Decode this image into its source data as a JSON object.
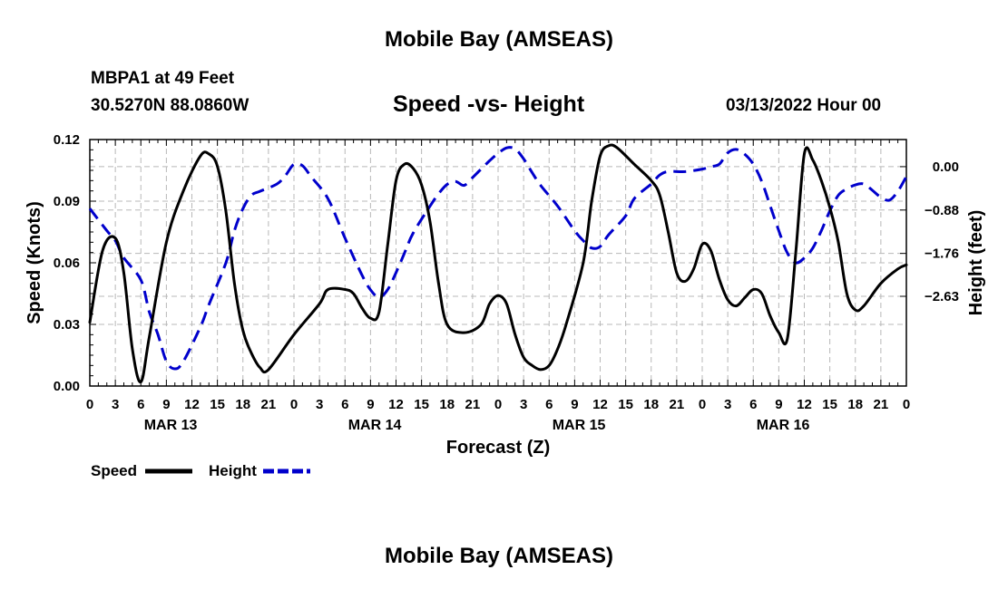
{
  "header": {
    "title": "Mobile Bay (AMSEAS)",
    "station": "MBPA1 at 49 Feet",
    "coords": "30.5270N  88.0860W",
    "subtitle": "Speed -vs- Height",
    "date": "03/13/2022 Hour 00"
  },
  "footer": {
    "title": "Mobile Bay (AMSEAS)"
  },
  "chart_data": {
    "type": "line",
    "xlabel": "Forecast (Z)",
    "ylabel": "Speed (Knots)",
    "y2label": "Height (feet)",
    "x_range_hours": [
      0,
      96
    ],
    "ylim": [
      0,
      0.12
    ],
    "y2lim": [
      -4.45,
      0.55
    ],
    "x_tick_labels": [
      "0",
      "3",
      "6",
      "9",
      "12",
      "15",
      "18",
      "21",
      "0",
      "3",
      "6",
      "9",
      "12",
      "15",
      "18",
      "21",
      "0",
      "3",
      "6",
      "9",
      "12",
      "15",
      "18",
      "21",
      "0",
      "3",
      "6",
      "9",
      "12",
      "15",
      "18",
      "21",
      "0"
    ],
    "day_labels": [
      {
        "label": "MAR 13",
        "hour": 9.5
      },
      {
        "label": "MAR 14",
        "hour": 33.5
      },
      {
        "label": "MAR 15",
        "hour": 57.5
      },
      {
        "label": "MAR 16",
        "hour": 81.5
      }
    ],
    "y_ticks": [
      0,
      0.03,
      0.06,
      0.09,
      0.12
    ],
    "y_tick_labels": [
      "0.00",
      "0.03",
      "0.06",
      "0.09",
      "0.12"
    ],
    "y2_ticks": [
      0.0,
      -0.88,
      -1.76,
      -2.63
    ],
    "y2_tick_labels": [
      "0.00",
      "−0.88",
      "−1.76",
      "−2.63"
    ],
    "legend": [
      {
        "name": "Speed",
        "color": "#000000"
      },
      {
        "name": "Height",
        "color": "#0000cc"
      }
    ],
    "series": [
      {
        "name": "Speed",
        "axis": "left",
        "color": "#000000",
        "dash": "solid",
        "points": [
          [
            0,
            0.031
          ],
          [
            1.5,
            0.066
          ],
          [
            3,
            0.072
          ],
          [
            4,
            0.055
          ],
          [
            5,
            0.018
          ],
          [
            6,
            0.002
          ],
          [
            7,
            0.024
          ],
          [
            9,
            0.07
          ],
          [
            11,
            0.095
          ],
          [
            13,
            0.112
          ],
          [
            14,
            0.113
          ],
          [
            15,
            0.107
          ],
          [
            16,
            0.085
          ],
          [
            17,
            0.05
          ],
          [
            18,
            0.027
          ],
          [
            19,
            0.016
          ],
          [
            20,
            0.009
          ],
          [
            21,
            0.008
          ],
          [
            24,
            0.025
          ],
          [
            27,
            0.04
          ],
          [
            28,
            0.047
          ],
          [
            30,
            0.047
          ],
          [
            31,
            0.045
          ],
          [
            32,
            0.038
          ],
          [
            33,
            0.033
          ],
          [
            34,
            0.036
          ],
          [
            35,
            0.068
          ],
          [
            36,
            0.1
          ],
          [
            37,
            0.108
          ],
          [
            38,
            0.106
          ],
          [
            39,
            0.098
          ],
          [
            40,
            0.08
          ],
          [
            41,
            0.05
          ],
          [
            42,
            0.03
          ],
          [
            44,
            0.026
          ],
          [
            46,
            0.03
          ],
          [
            47,
            0.04
          ],
          [
            48,
            0.044
          ],
          [
            49,
            0.04
          ],
          [
            50,
            0.025
          ],
          [
            51,
            0.014
          ],
          [
            52,
            0.01
          ],
          [
            53,
            0.008
          ],
          [
            54,
            0.01
          ],
          [
            55,
            0.018
          ],
          [
            56,
            0.03
          ],
          [
            58,
            0.06
          ],
          [
            59,
            0.09
          ],
          [
            60,
            0.112
          ],
          [
            61,
            0.117
          ],
          [
            62,
            0.116
          ],
          [
            64,
            0.108
          ],
          [
            66,
            0.1
          ],
          [
            67,
            0.093
          ],
          [
            68,
            0.075
          ],
          [
            69,
            0.055
          ],
          [
            70,
            0.051
          ],
          [
            71,
            0.057
          ],
          [
            72,
            0.069
          ],
          [
            73,
            0.066
          ],
          [
            74,
            0.052
          ],
          [
            75,
            0.042
          ],
          [
            76,
            0.039
          ],
          [
            77,
            0.043
          ],
          [
            78,
            0.047
          ],
          [
            79,
            0.045
          ],
          [
            80,
            0.034
          ],
          [
            81,
            0.026
          ],
          [
            82,
            0.023
          ],
          [
            83,
            0.065
          ],
          [
            84,
            0.113
          ],
          [
            85,
            0.11
          ],
          [
            86,
            0.1
          ],
          [
            87,
            0.087
          ],
          [
            88,
            0.07
          ],
          [
            89,
            0.045
          ],
          [
            90,
            0.037
          ],
          [
            91,
            0.039
          ],
          [
            93,
            0.05
          ],
          [
            95,
            0.057
          ],
          [
            96,
            0.059
          ]
        ]
      },
      {
        "name": "Height",
        "axis": "right",
        "color": "#0000cc",
        "dash": "dashed",
        "points": [
          [
            0,
            -0.85
          ],
          [
            2,
            -1.3
          ],
          [
            3,
            -1.5
          ],
          [
            4,
            -1.85
          ],
          [
            6,
            -2.3
          ],
          [
            7,
            -2.95
          ],
          [
            8,
            -3.4
          ],
          [
            9,
            -3.95
          ],
          [
            10,
            -4.1
          ],
          [
            11,
            -3.95
          ],
          [
            13,
            -3.25
          ],
          [
            14,
            -2.8
          ],
          [
            16,
            -1.95
          ],
          [
            17,
            -1.3
          ],
          [
            18,
            -0.85
          ],
          [
            19,
            -0.58
          ],
          [
            20,
            -0.5
          ],
          [
            22,
            -0.35
          ],
          [
            23,
            -0.18
          ],
          [
            24,
            0.05
          ],
          [
            25,
            0.02
          ],
          [
            26,
            -0.2
          ],
          [
            28,
            -0.65
          ],
          [
            30,
            -1.45
          ],
          [
            32,
            -2.2
          ],
          [
            33,
            -2.5
          ],
          [
            34,
            -2.65
          ],
          [
            35,
            -2.5
          ],
          [
            36,
            -2.15
          ],
          [
            37,
            -1.75
          ],
          [
            38,
            -1.35
          ],
          [
            40,
            -0.8
          ],
          [
            41,
            -0.55
          ],
          [
            42,
            -0.36
          ],
          [
            43,
            -0.3
          ],
          [
            44,
            -0.38
          ],
          [
            45,
            -0.22
          ],
          [
            46,
            -0.05
          ],
          [
            47,
            0.12
          ],
          [
            48,
            0.27
          ],
          [
            49,
            0.38
          ],
          [
            50,
            0.36
          ],
          [
            51,
            0.16
          ],
          [
            52,
            -0.12
          ],
          [
            53,
            -0.38
          ],
          [
            55,
            -0.8
          ],
          [
            57,
            -1.3
          ],
          [
            58,
            -1.5
          ],
          [
            59,
            -1.65
          ],
          [
            60,
            -1.62
          ],
          [
            61,
            -1.38
          ],
          [
            63,
            -1.0
          ],
          [
            64,
            -0.65
          ],
          [
            66,
            -0.35
          ],
          [
            67,
            -0.17
          ],
          [
            68,
            -0.1
          ],
          [
            70,
            -0.1
          ],
          [
            72,
            -0.05
          ],
          [
            73,
            0.0
          ],
          [
            74,
            0.05
          ],
          [
            75,
            0.28
          ],
          [
            76,
            0.35
          ],
          [
            77,
            0.25
          ],
          [
            78,
            0.05
          ],
          [
            79,
            -0.3
          ],
          [
            80,
            -0.8
          ],
          [
            81,
            -1.3
          ],
          [
            82,
            -1.75
          ],
          [
            83,
            -1.95
          ],
          [
            84,
            -1.85
          ],
          [
            85,
            -1.65
          ],
          [
            86,
            -1.3
          ],
          [
            87,
            -0.9
          ],
          [
            88,
            -0.58
          ],
          [
            89,
            -0.45
          ],
          [
            90,
            -0.37
          ],
          [
            91,
            -0.35
          ],
          [
            92,
            -0.48
          ],
          [
            93,
            -0.62
          ],
          [
            94,
            -0.68
          ],
          [
            95,
            -0.5
          ],
          [
            96,
            -0.2
          ]
        ]
      }
    ]
  }
}
